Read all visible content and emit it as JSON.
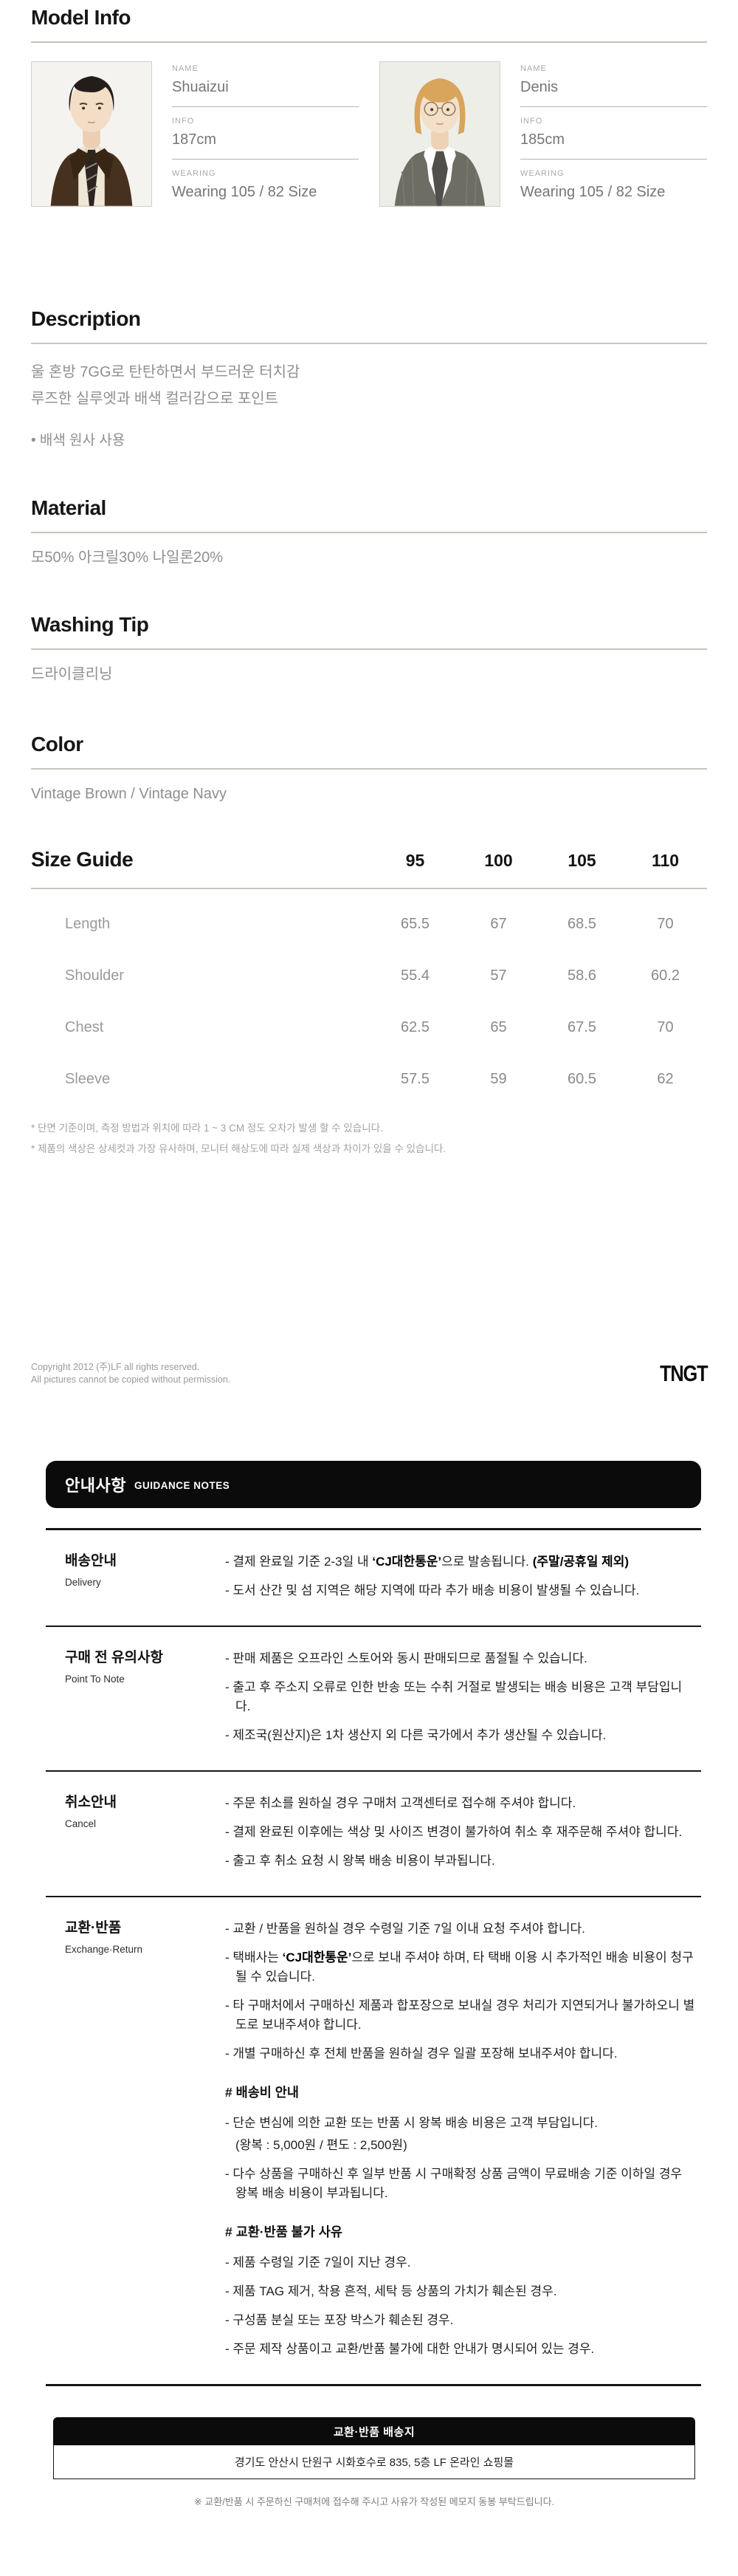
{
  "model_info": {
    "title": "Model Info",
    "labels": {
      "name": "NAME",
      "info": "INFO",
      "wearing": "WEARING"
    },
    "models": [
      {
        "name": "Shuaizui",
        "info": "187cm",
        "wearing": "Wearing 105 / 82 Size"
      },
      {
        "name": "Denis",
        "info": "185cm",
        "wearing": "Wearing 105 / 82 Size"
      }
    ]
  },
  "description": {
    "title": "Description",
    "line1": "울 혼방 7GG로 탄탄하면서 부드러운 터치감",
    "line2": "루즈한 실루엣과 배색 컬러감으로 포인트",
    "bullet": "• 배색 원사 사용"
  },
  "material": {
    "title": "Material",
    "text": "모50% 아크릴30% 나일론20%"
  },
  "washing_tip": {
    "title": "Washing Tip",
    "text": "드라이클리닝"
  },
  "color": {
    "title": "Color",
    "text": "Vintage Brown / Vintage Navy"
  },
  "size_guide": {
    "title": "Size Guide",
    "columns": [
      "95",
      "100",
      "105",
      "110"
    ],
    "rows": [
      {
        "label": "Length",
        "values": [
          "65.5",
          "67",
          "68.5",
          "70"
        ]
      },
      {
        "label": "Shoulder",
        "values": [
          "55.4",
          "57",
          "58.6",
          "60.2"
        ]
      },
      {
        "label": "Chest",
        "values": [
          "62.5",
          "65",
          "67.5",
          "70"
        ]
      },
      {
        "label": "Sleeve",
        "values": [
          "57.5",
          "59",
          "60.5",
          "62"
        ]
      }
    ],
    "notes": [
      "* 단면 기준이며, 측정 방법과 위치에 따라 1 ~ 3 CM 정도 오차가 발생 할 수 있습니다.",
      "* 제품의 색상은 상세컷과 가장 유사하며, 모니터 해상도에 따라 실제 색상과 차이가 있을 수 있습니다."
    ]
  },
  "copyright": {
    "line1": "Copyright 2012 (주)LF all rights reserved.",
    "line2": "All pictures cannot be copied without permission.",
    "brand": "TNGT"
  },
  "guidance": {
    "banner_ko": "안내사항",
    "banner_en": "GUIDANCE NOTES",
    "rows": [
      {
        "label_ko": "배송안내",
        "label_en": "Delivery",
        "items": [
          "- 결제 완료일 기준 2-3일 내 **‘CJ대한통운’**으로 발송됩니다. **(주말/공휴일 제외)**",
          "- 도서 산간 및 섬 지역은 해당 지역에 따라 추가 배송 비용이 발생될 수 있습니다."
        ]
      },
      {
        "label_ko": "구매 전 유의사항",
        "label_en": "Point To Note",
        "items": [
          "- 판매 제품은 오프라인 스토어와 동시 판매되므로 품절될 수 있습니다.",
          "- 출고 후 주소지 오류로 인한 반송 또는 수취 거절로 발생되는 배송 비용은 고객 부담입니다.",
          "- 제조국(원산지)은 1차 생산지 외 다른 국가에서 추가 생산될 수 있습니다."
        ]
      },
      {
        "label_ko": "취소안내",
        "label_en": "Cancel",
        "items": [
          "- 주문 취소를 원하실 경우 구매처 고객센터로 접수해 주셔야 합니다.",
          "- 결제 완료된 이후에는 색상 및 사이즈 변경이 불가하여 취소 후 재주문해 주셔야 합니다.",
          "- 출고 후 취소 요청 시 왕복 배송 비용이 부과됩니다."
        ]
      },
      {
        "label_ko": "교환·반품",
        "label_en": "Exchange·Return",
        "items": [
          "- 교환 / 반품을 원하실 경우 수령일 기준 7일 이내 요청 주셔야 합니다.",
          "- 택배사는 **‘CJ대한통운’**으로 보내 주셔야 하며, 타 택배 이용 시 추가적인 배송 비용이 청구 될 수 있습니다.",
          "- 타 구매처에서 구매하신 제품과 합포장으로 보내실 경우 처리가 지연되거나 불가하오니 별도로 보내주셔야 합니다.",
          "- 개별 구매하신 후 전체 반품을 원하실 경우 일괄 포장해 보내주셔야 합니다."
        ],
        "sections": [
          {
            "heading": "# 배송비 안내",
            "items": [
              "- 단순 변심에 의한 교환 또는 반품 시 왕복 배송 비용은 고객 부담입니다.",
              "(왕복 : 5,000원 / 편도 : 2,500원)",
              "- 다수 상품을 구매하신 후 일부 반품 시 구매확정 상품 금액이 무료배송 기준 이하일 경우 왕복 배송 비용이 부과됩니다."
            ]
          },
          {
            "heading": "# 교환·반품 불가 사유",
            "items": [
              "- 제품 수령일 기준 7일이 지난 경우.",
              "- 제품 TAG 제거, 착용 흔적, 세탁 등 상품의 가치가 훼손된 경우.",
              "- 구성품 분실 또는 포장 박스가 훼손된 경우.",
              "- 주문 제작 상품이고 교환/반품 불가에 대한 안내가 명시되어 있는 경우."
            ]
          }
        ]
      }
    ]
  },
  "ship_to": {
    "bar": "교환·반품 배송지",
    "address": "경기도 안산시 단원구 시화호수로 835, 5층 LF 온라인 쇼핑몰",
    "note": "※ 교환/반품 시 주문하신 구매처에 접수해 주시고 사유가 작성된 메모지 동봉 부탁드립니다."
  }
}
